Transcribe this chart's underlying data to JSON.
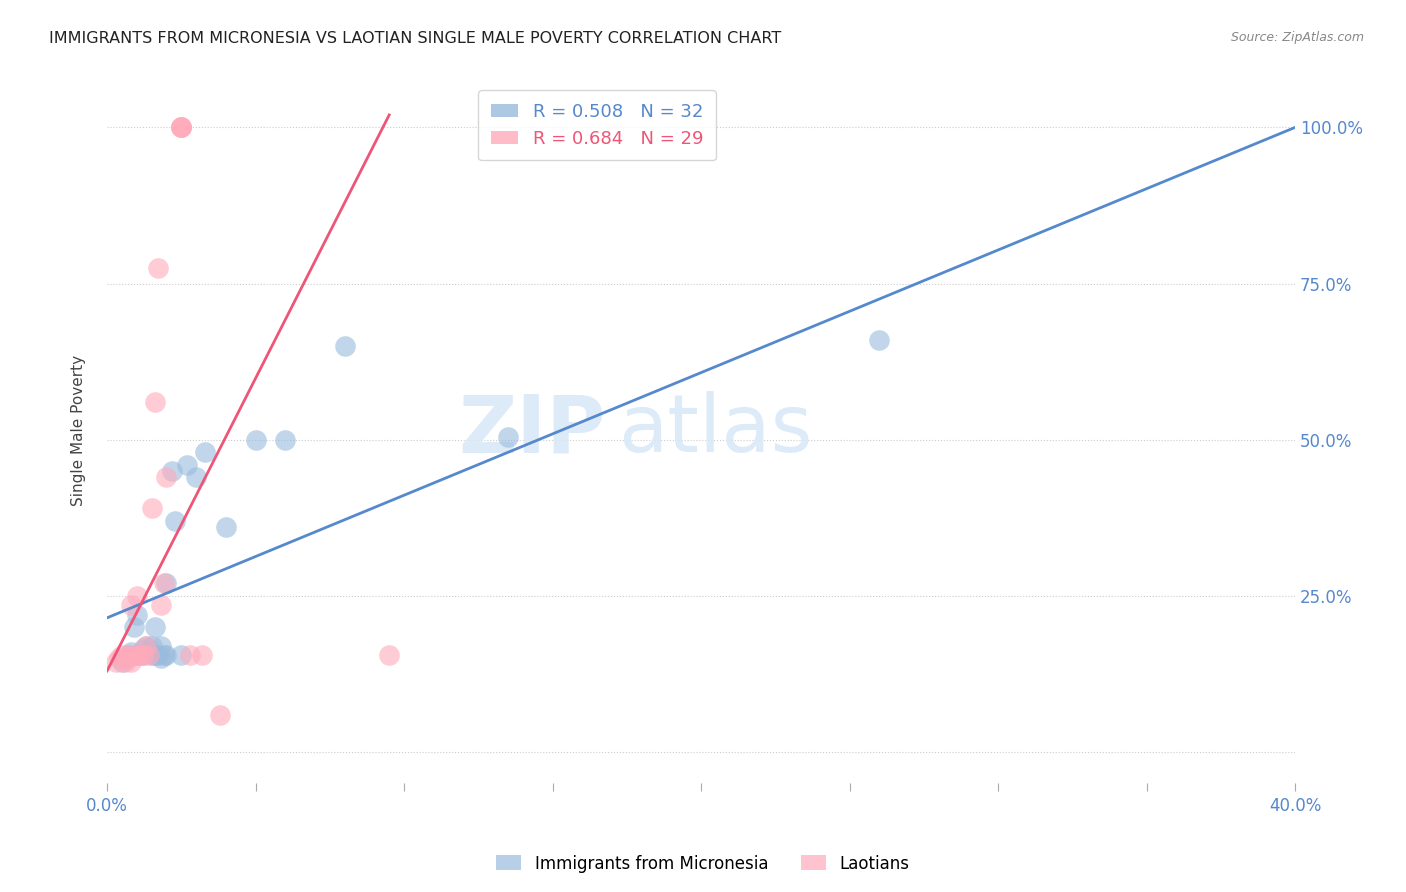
{
  "title": "IMMIGRANTS FROM MICRONESIA VS LAOTIAN SINGLE MALE POVERTY CORRELATION CHART",
  "source": "Source: ZipAtlas.com",
  "ylabel": "Single Male Poverty",
  "xlim": [
    0.0,
    0.4
  ],
  "ylim": [
    -0.05,
    1.08
  ],
  "legend1_R": "0.508",
  "legend1_N": "32",
  "legend2_R": "0.684",
  "legend2_N": "29",
  "blue_color": "#99BBDD",
  "pink_color": "#FFAABB",
  "blue_line_color": "#5588CC",
  "pink_line_color": "#EE5577",
  "watermark_zip": "ZIP",
  "watermark_atlas": "atlas",
  "blue_scatter_x": [
    0.005,
    0.007,
    0.008,
    0.009,
    0.01,
    0.01,
    0.012,
    0.012,
    0.013,
    0.014,
    0.015,
    0.015,
    0.016,
    0.016,
    0.017,
    0.018,
    0.018,
    0.019,
    0.02,
    0.02,
    0.022,
    0.023,
    0.025,
    0.027,
    0.03,
    0.033,
    0.04,
    0.05,
    0.06,
    0.08,
    0.135,
    0.26
  ],
  "blue_scatter_y": [
    0.145,
    0.155,
    0.16,
    0.2,
    0.155,
    0.22,
    0.155,
    0.165,
    0.17,
    0.165,
    0.155,
    0.17,
    0.155,
    0.2,
    0.155,
    0.15,
    0.17,
    0.155,
    0.27,
    0.155,
    0.45,
    0.37,
    0.155,
    0.46,
    0.44,
    0.48,
    0.36,
    0.5,
    0.5,
    0.65,
    0.505,
    0.66
  ],
  "pink_scatter_x": [
    0.003,
    0.004,
    0.005,
    0.006,
    0.007,
    0.007,
    0.008,
    0.008,
    0.009,
    0.01,
    0.01,
    0.011,
    0.012,
    0.013,
    0.014,
    0.015,
    0.016,
    0.017,
    0.018,
    0.019,
    0.02,
    0.025,
    0.025,
    0.025,
    0.025,
    0.028,
    0.032,
    0.038,
    0.095
  ],
  "pink_scatter_y": [
    0.145,
    0.15,
    0.155,
    0.145,
    0.15,
    0.155,
    0.145,
    0.235,
    0.155,
    0.155,
    0.25,
    0.155,
    0.155,
    0.17,
    0.155,
    0.39,
    0.56,
    0.775,
    0.235,
    0.27,
    0.44,
    1.0,
    1.0,
    1.0,
    1.0,
    0.155,
    0.155,
    0.06,
    0.155
  ],
  "blue_line_x": [
    0.0,
    0.4
  ],
  "blue_line_y": [
    0.215,
    1.0
  ],
  "pink_line_x": [
    0.0,
    0.095
  ],
  "pink_line_y": [
    0.13,
    1.02
  ],
  "xtick_positions": [
    0.0,
    0.05,
    0.1,
    0.15,
    0.2,
    0.25,
    0.3,
    0.35,
    0.4
  ],
  "ytick_positions": [
    0.0,
    0.25,
    0.5,
    0.75,
    1.0
  ]
}
